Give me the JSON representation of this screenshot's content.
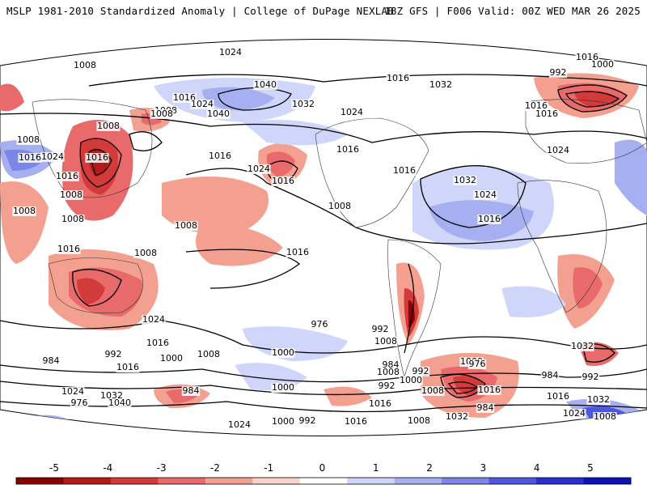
{
  "header": {
    "left": "MSLP 1981-2010 Standardized Anomaly | College of DuPage NEXLAB",
    "right": "18Z GFS | F006 Valid: 00Z WED MAR 26 2025"
  },
  "colorbar": {
    "ticks": [
      "-5",
      "-4",
      "-3",
      "-2",
      "-1",
      "0",
      "1",
      "2",
      "3",
      "4",
      "5"
    ],
    "colors": [
      "#8b0000",
      "#b31b1b",
      "#d33a3a",
      "#e86a6a",
      "#f4a090",
      "#fbd3c8",
      "#ffffff",
      "#d0d6fa",
      "#a6b0f0",
      "#7c86e8",
      "#4e58dc",
      "#2a2ed0",
      "#1010b8"
    ]
  },
  "map": {
    "isobar_labels": [
      "1024",
      "1016",
      "1008",
      "1016",
      "1040",
      "1032",
      "1032",
      "1040",
      "1024",
      "1016",
      "1008",
      "1016",
      "1024",
      "1008",
      "1008",
      "1008",
      "1016",
      "1024",
      "1016",
      "1016",
      "1032",
      "1024",
      "1016",
      "1008",
      "1008",
      "1016",
      "1024",
      "1016",
      "1016",
      "1008",
      "992",
      "1000",
      "1016",
      "1008",
      "1016",
      "1008",
      "1024",
      "1016",
      "1016",
      "1008",
      "984",
      "992",
      "1000",
      "1008",
      "1016",
      "1000",
      "1008",
      "976",
      "992",
      "1024",
      "984",
      "992",
      "1000",
      "1016",
      "1032",
      "976",
      "984",
      "992",
      "1000",
      "1008",
      "1016",
      "1024",
      "1032",
      "1040",
      "976",
      "984",
      "992",
      "1000",
      "1008",
      "1016",
      "1024",
      "1032",
      "1008",
      "1000",
      "992",
      "1016",
      "1008",
      "1032",
      "1024",
      "984",
      "1016"
    ],
    "colors": {
      "positive_anomaly": "#6a78e6",
      "negative_anomaly": "#e05050"
    }
  }
}
